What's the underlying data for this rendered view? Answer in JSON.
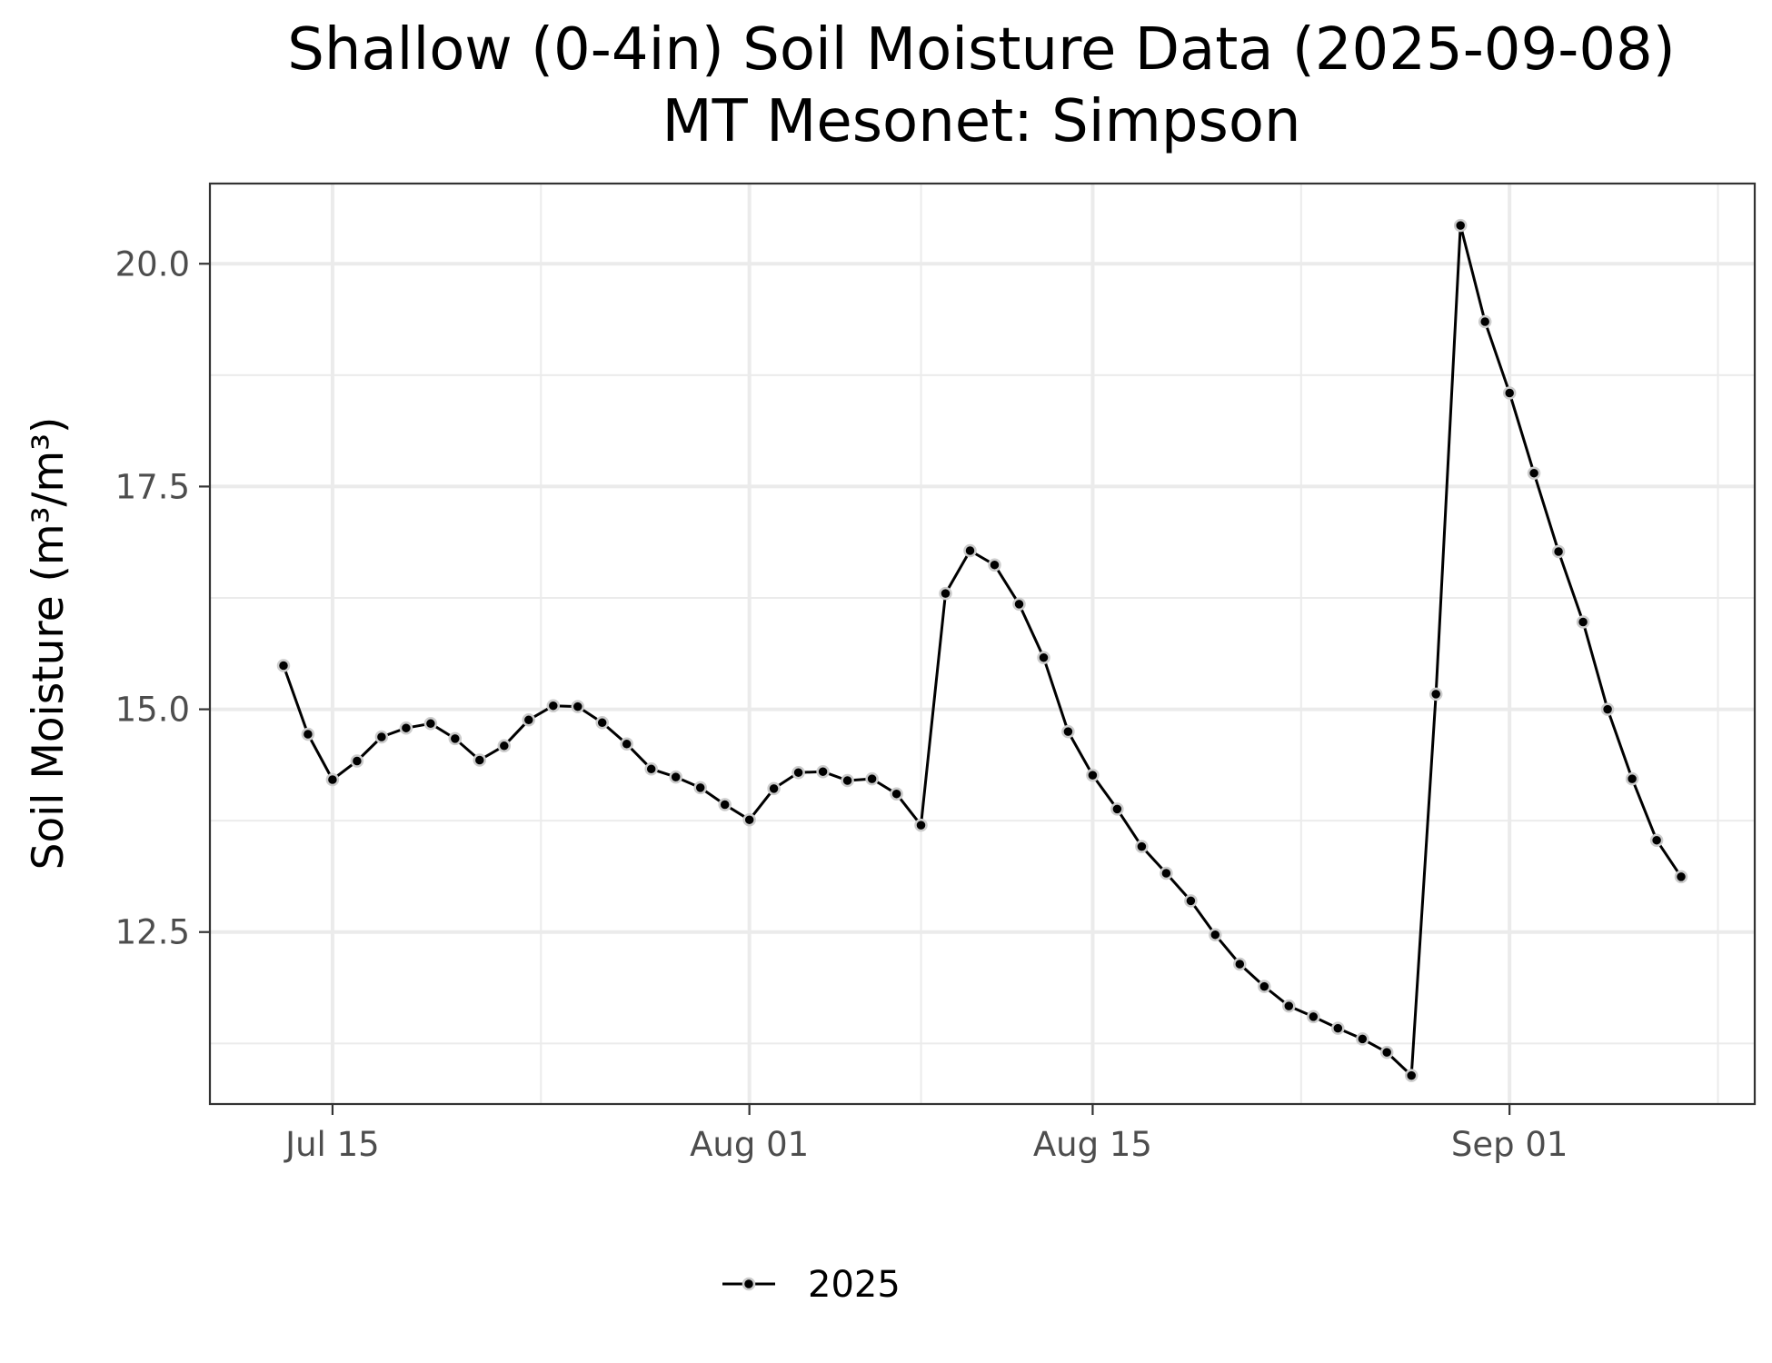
{
  "chart_data": {
    "type": "line",
    "title": "Shallow (0-4in) Soil Moisture Data (2025-09-08)",
    "subtitle": "MT Mesonet: Simpson",
    "xlabel": "",
    "ylabel": "Soil Moisture (m³/m³)",
    "x_type": "date",
    "xlim": [
      "2025-07-10",
      "2025-09-11"
    ],
    "ylim": [
      10.57,
      20.9
    ],
    "x_ticks": [
      {
        "value": "2025-07-15",
        "label": "Jul 15"
      },
      {
        "value": "2025-08-01",
        "label": "Aug 01"
      },
      {
        "value": "2025-08-15",
        "label": "Aug 15"
      },
      {
        "value": "2025-09-01",
        "label": "Sep 01"
      }
    ],
    "y_ticks": [
      {
        "value": 12.5,
        "label": "12.5"
      },
      {
        "value": 15.0,
        "label": "15.0"
      },
      {
        "value": 17.5,
        "label": "17.5"
      },
      {
        "value": 20.0,
        "label": "20.0"
      }
    ],
    "grid": true,
    "legend_position": "bottom",
    "series": [
      {
        "name": "2025",
        "color": "#000000",
        "marker_fill": "#000000",
        "marker_outline": "#cccccc",
        "x": [
          "2025-07-13",
          "2025-07-14",
          "2025-07-15",
          "2025-07-16",
          "2025-07-17",
          "2025-07-18",
          "2025-07-19",
          "2025-07-20",
          "2025-07-21",
          "2025-07-22",
          "2025-07-23",
          "2025-07-24",
          "2025-07-25",
          "2025-07-26",
          "2025-07-27",
          "2025-07-28",
          "2025-07-29",
          "2025-07-30",
          "2025-07-31",
          "2025-08-01",
          "2025-08-02",
          "2025-08-03",
          "2025-08-04",
          "2025-08-05",
          "2025-08-06",
          "2025-08-07",
          "2025-08-08",
          "2025-08-09",
          "2025-08-10",
          "2025-08-11",
          "2025-08-12",
          "2025-08-13",
          "2025-08-14",
          "2025-08-15",
          "2025-08-16",
          "2025-08-17",
          "2025-08-18",
          "2025-08-19",
          "2025-08-20",
          "2025-08-21",
          "2025-08-22",
          "2025-08-23",
          "2025-08-24",
          "2025-08-25",
          "2025-08-26",
          "2025-08-27",
          "2025-08-28",
          "2025-08-29",
          "2025-08-30",
          "2025-08-31",
          "2025-09-01",
          "2025-09-02",
          "2025-09-03",
          "2025-09-04",
          "2025-09-05",
          "2025-09-06",
          "2025-09-07",
          "2025-09-08"
        ],
        "values": [
          15.49,
          14.72,
          14.21,
          14.42,
          14.69,
          14.79,
          14.84,
          14.67,
          14.43,
          14.59,
          14.88,
          15.04,
          15.03,
          14.85,
          14.61,
          14.33,
          14.24,
          14.12,
          13.93,
          13.76,
          14.11,
          14.29,
          14.3,
          14.2,
          14.22,
          14.05,
          13.7,
          16.3,
          16.78,
          16.62,
          16.18,
          15.58,
          14.75,
          14.26,
          13.88,
          13.46,
          13.16,
          12.85,
          12.47,
          12.14,
          11.89,
          11.67,
          11.55,
          11.42,
          11.3,
          11.15,
          10.89,
          15.17,
          20.43,
          19.35,
          18.55,
          17.65,
          16.77,
          15.98,
          15.0,
          14.22,
          13.53,
          13.12
        ]
      }
    ]
  }
}
